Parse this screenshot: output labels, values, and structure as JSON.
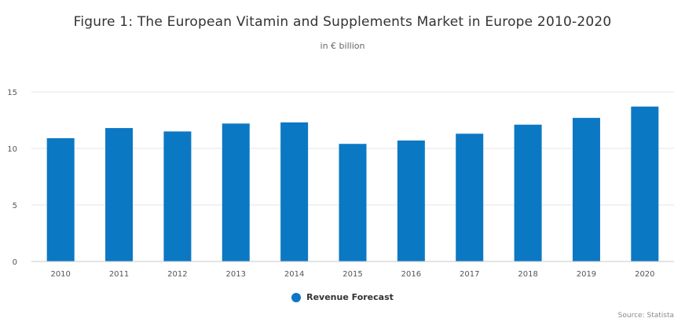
{
  "chart_data": {
    "type": "bar",
    "title": "Figure 1: The European Vitamin and Supplements Market in Europe 2010-2020",
    "subtitle": "in € billion",
    "categories": [
      "2010",
      "2011",
      "2012",
      "2013",
      "2014",
      "2015",
      "2016",
      "2017",
      "2018",
      "2019",
      "2020"
    ],
    "series": [
      {
        "name": "Revenue Forecast",
        "values": [
          10.9,
          11.8,
          11.5,
          12.2,
          12.3,
          10.4,
          10.7,
          11.3,
          12.1,
          12.7,
          13.7
        ]
      }
    ],
    "yticks": [
      0,
      5,
      10,
      15
    ],
    "ylim": [
      0,
      15
    ],
    "grid": true,
    "legend_position": "bottom-center",
    "color": "#0b78c4",
    "source": "Source: Statista"
  }
}
